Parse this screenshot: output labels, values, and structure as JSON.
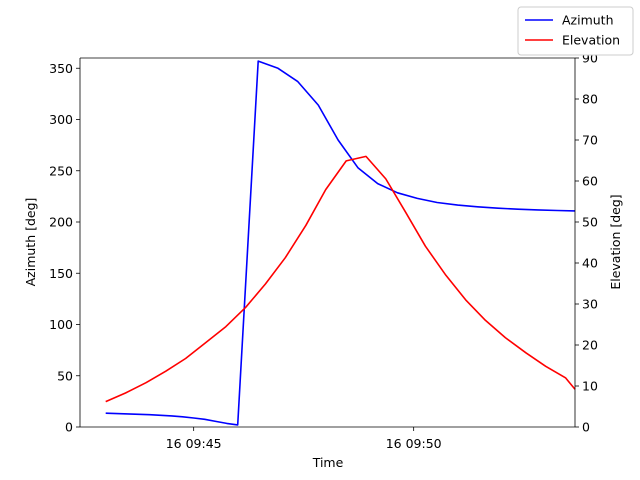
{
  "chart_data": {
    "type": "line",
    "title": "",
    "xlabel": "Time",
    "ylabel_left": "Azimuth [deg]",
    "ylabel_right": "Elevation [deg]",
    "x_ticks": [
      "16 09:45",
      "16 09:50"
    ],
    "y_left_ticks": [
      0,
      50,
      100,
      150,
      200,
      250,
      300,
      350
    ],
    "y_right_ticks": [
      0,
      10,
      20,
      30,
      40,
      50,
      60,
      70,
      80,
      90
    ],
    "ylim_left": [
      0,
      360
    ],
    "ylim_right": [
      0,
      90
    ],
    "xlim": [
      "09:42:25",
      "09:53:40"
    ],
    "grid": false,
    "legend_position": "top-right",
    "series": [
      {
        "name": "Azimuth",
        "axis": "left",
        "color": "#0000ff",
        "points": [
          [
            "09:43:00",
            13.5
          ],
          [
            "09:43:30",
            12.8
          ],
          [
            "09:44:00",
            12.0
          ],
          [
            "09:44:30",
            10.8
          ],
          [
            "09:44:45",
            10.0
          ],
          [
            "09:45:00",
            8.8
          ],
          [
            "09:45:15",
            7.5
          ],
          [
            "09:45:30",
            5.5
          ],
          [
            "09:45:45",
            3.5
          ],
          [
            "09:46:00",
            2.0
          ],
          [
            "09:46:28",
            357.0
          ],
          [
            "09:46:55",
            350.0
          ],
          [
            "09:47:22",
            337.0
          ],
          [
            "09:47:50",
            314.0
          ],
          [
            "09:48:17",
            280.0
          ],
          [
            "09:48:44",
            253.0
          ],
          [
            "09:49:11",
            237.5
          ],
          [
            "09:49:38",
            228.5
          ],
          [
            "09:50:05",
            223.0
          ],
          [
            "09:50:32",
            219.0
          ],
          [
            "09:51:00",
            216.5
          ],
          [
            "09:51:27",
            214.8
          ],
          [
            "09:51:55",
            213.5
          ],
          [
            "09:52:22",
            212.5
          ],
          [
            "09:52:49",
            211.8
          ],
          [
            "09:53:16",
            211.2
          ],
          [
            "09:53:40",
            210.8
          ]
        ]
      },
      {
        "name": "Elevation",
        "axis": "right",
        "color": "#ff0000",
        "points": [
          [
            "09:43:00",
            6.2
          ],
          [
            "09:43:27",
            8.3
          ],
          [
            "09:43:55",
            10.8
          ],
          [
            "09:44:22",
            13.6
          ],
          [
            "09:44:49",
            16.7
          ],
          [
            "09:45:16",
            20.5
          ],
          [
            "09:45:44",
            24.5
          ],
          [
            "09:46:11",
            29.2
          ],
          [
            "09:46:38",
            34.9
          ],
          [
            "09:47:05",
            41.3
          ],
          [
            "09:47:33",
            49.2
          ],
          [
            "09:48:00",
            57.9
          ],
          [
            "09:48:28",
            64.9
          ],
          [
            "09:48:55",
            66.0
          ],
          [
            "09:49:22",
            60.5
          ],
          [
            "09:49:49",
            52.4
          ],
          [
            "09:50:16",
            44.1
          ],
          [
            "09:50:44",
            37.0
          ],
          [
            "09:51:11",
            31.0
          ],
          [
            "09:51:38",
            26.0
          ],
          [
            "09:52:05",
            21.8
          ],
          [
            "09:52:33",
            18.1
          ],
          [
            "09:53:00",
            14.8
          ],
          [
            "09:53:27",
            12.0
          ],
          [
            "09:53:40",
            9.2
          ]
        ]
      }
    ]
  }
}
